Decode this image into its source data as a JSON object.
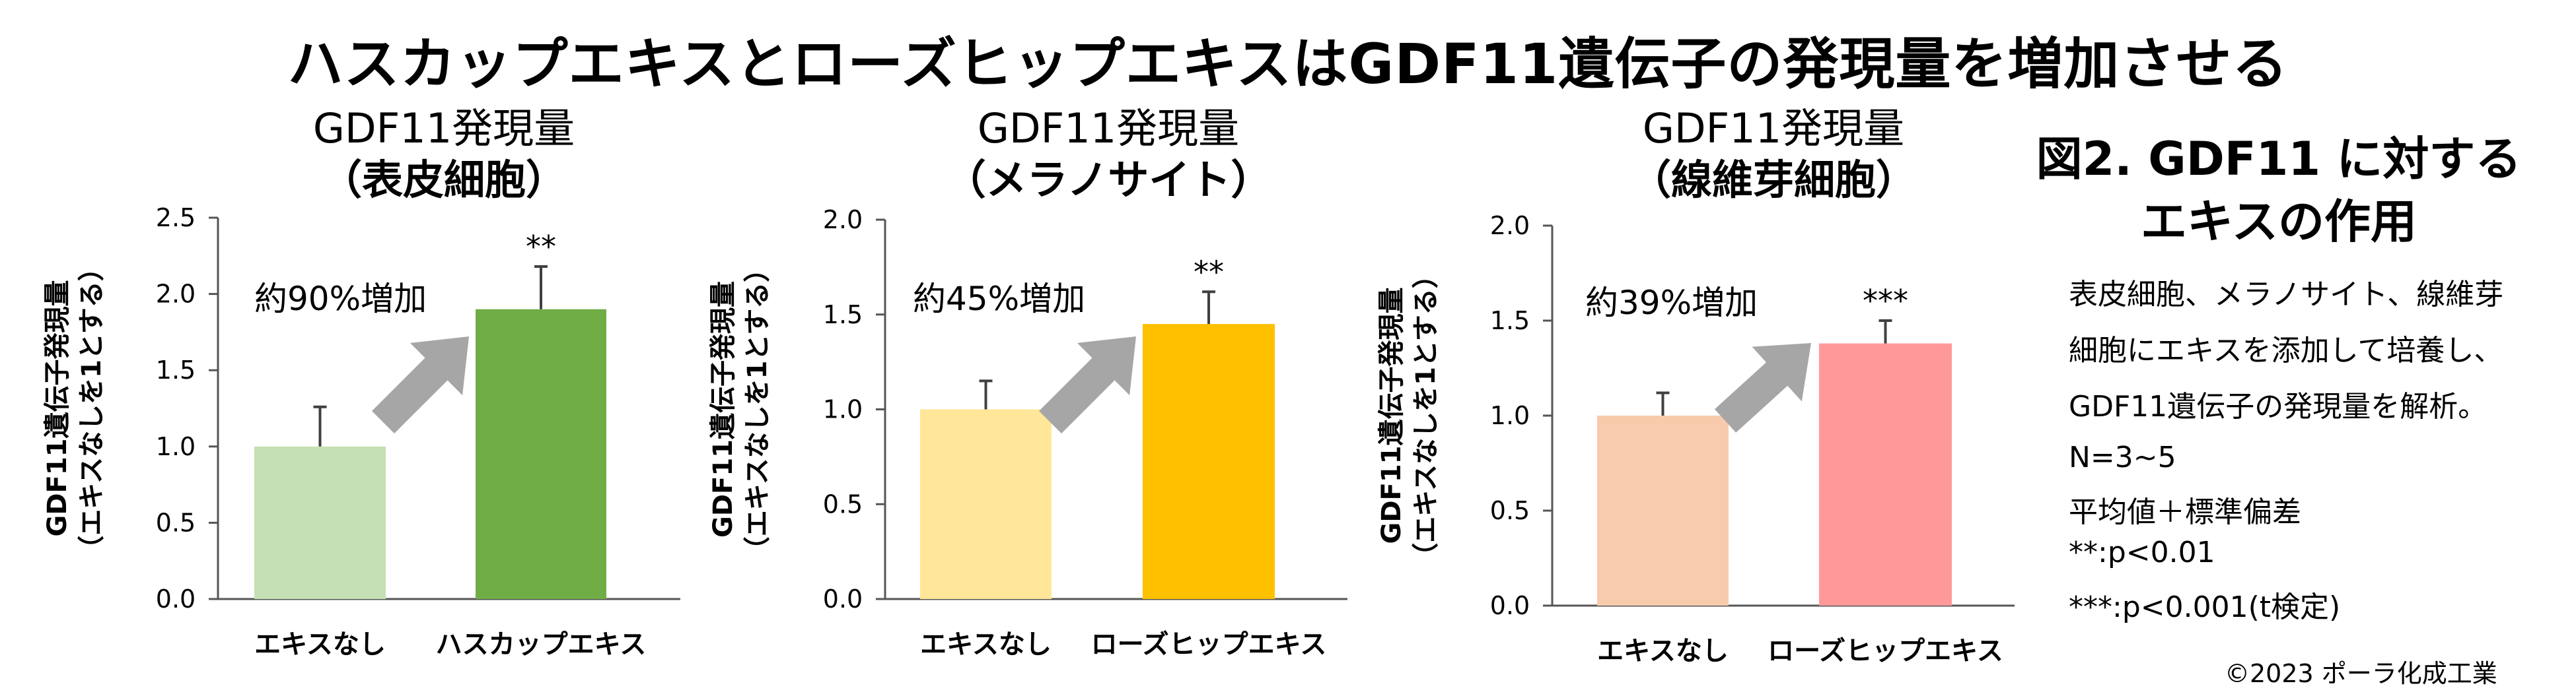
{
  "main_title": "ハスカップエキスとローズヒップエキスはGDF11遺伝子の発現量を増加させる",
  "ylabel_line1": "GDF11遺伝子発現量",
  "ylabel_line2": "（エキスなしを1とする）",
  "colors": {
    "axis": "#555555",
    "arrow": "#a6a6a6",
    "error": "#404040"
  },
  "chart_data": [
    {
      "type": "bar",
      "title": "GDF11発現量",
      "subtitle": "（表皮細胞）",
      "categories": [
        "エキスなし",
        "ハスカップエキス"
      ],
      "values": [
        1.0,
        1.9
      ],
      "errors": [
        0.26,
        0.28
      ],
      "significance": [
        "",
        "**"
      ],
      "bar_colors": [
        "#c5e0b4",
        "#70ad47"
      ],
      "annotation": "約90%増加",
      "ylim": [
        0,
        2.5
      ],
      "yticks": [
        "0.0",
        "0.5",
        "1.0",
        "1.5",
        "2.0",
        "2.5"
      ]
    },
    {
      "type": "bar",
      "title": "GDF11発現量",
      "subtitle": "（メラノサイト）",
      "categories": [
        "エキスなし",
        "ローズヒップエキス"
      ],
      "values": [
        1.0,
        1.45
      ],
      "errors": [
        0.15,
        0.17
      ],
      "significance": [
        "",
        "**"
      ],
      "bar_colors": [
        "#ffe699",
        "#ffc000"
      ],
      "annotation": "約45%増加",
      "ylim": [
        0,
        2.0
      ],
      "yticks": [
        "0.0",
        "0.5",
        "1.0",
        "1.5",
        "2.0"
      ]
    },
    {
      "type": "bar",
      "title": "GDF11発現量",
      "subtitle": "（線維芽細胞）",
      "categories": [
        "エキスなし",
        "ローズヒップエキス"
      ],
      "values": [
        1.0,
        1.38
      ],
      "errors": [
        0.12,
        0.12
      ],
      "significance": [
        "",
        "***"
      ],
      "bar_colors": [
        "#f8cbad",
        "#ff9999"
      ],
      "annotation": "約39%増加",
      "ylim": [
        0,
        2.0
      ],
      "yticks": [
        "0.0",
        "0.5",
        "1.0",
        "1.5",
        "2.0"
      ]
    }
  ],
  "side": {
    "title_line1": "図2. GDF11 に対する",
    "title_line2": "エキスの作用",
    "desc_lines": [
      "表皮細胞、メラノサイト、線維芽",
      "細胞にエキスを添加して培養し、",
      "GDF11遺伝子の発現量を解析。"
    ],
    "stats_lines": [
      "N=3~5",
      "平均値＋標準偏差",
      "**:p<0.01",
      "***:p<0.001(t検定)"
    ]
  },
  "copyright": "©2023 ポーラ化成工業"
}
